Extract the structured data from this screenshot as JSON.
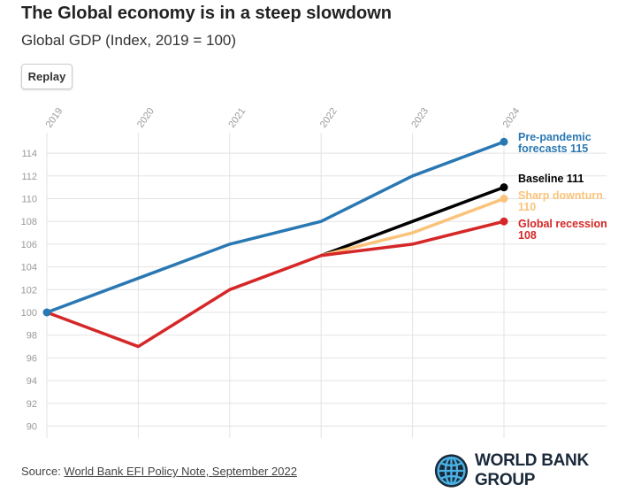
{
  "title": "The Global economy is in a steep slowdown",
  "subtitle": "Global GDP (Index, 2019 = 100)",
  "replay_label": "Replay",
  "source_prefix": "Source: ",
  "source_link": "World Bank EFI Policy Note, September 2022",
  "logo_text": "WORLD BANK GROUP",
  "chart_data": {
    "type": "line",
    "title": "The Global economy is in a steep slowdown",
    "subtitle": "Global GDP (Index, 2019 = 100)",
    "x": [
      "2019",
      "2020",
      "2021",
      "2022",
      "2023",
      "2024"
    ],
    "ylim": [
      90,
      115
    ],
    "yticks": [
      90,
      92,
      94,
      96,
      98,
      100,
      102,
      104,
      106,
      108,
      110,
      112,
      114
    ],
    "series": [
      {
        "name": "Pre-pandemic forecasts",
        "label_lines": [
          "Pre-pandemic",
          "forecasts 115"
        ],
        "color": "#2a78b3",
        "x": [
          "2019",
          "2020",
          "2021",
          "2022",
          "2023",
          "2024"
        ],
        "values": [
          100,
          103,
          106,
          108,
          112,
          115
        ]
      },
      {
        "name": "Baseline",
        "label_lines": [
          "Baseline 111"
        ],
        "color": "#000000",
        "x": [
          "2022",
          "2023",
          "2024"
        ],
        "values": [
          105,
          108,
          111
        ]
      },
      {
        "name": "Sharp downturn",
        "label_lines": [
          "Sharp downturn",
          "110"
        ],
        "color": "#fbc37a",
        "x": [
          "2022",
          "2023",
          "2024"
        ],
        "values": [
          105,
          107,
          110
        ]
      },
      {
        "name": "Global recession",
        "label_lines": [
          "Global recession",
          "108"
        ],
        "color": "#d62728",
        "x": [
          "2019",
          "2020",
          "2021",
          "2022",
          "2023",
          "2024"
        ],
        "values": [
          100,
          97,
          102,
          105,
          106,
          108
        ]
      }
    ]
  }
}
